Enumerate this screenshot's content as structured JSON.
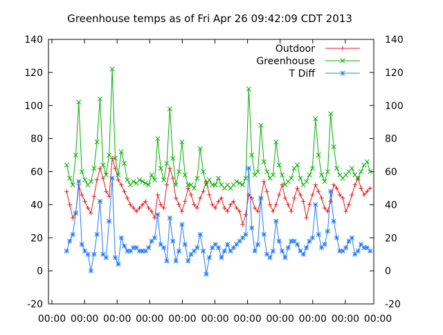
{
  "chart_data": {
    "type": "line",
    "title": "Greenhouse temps as of Fri Apr 26 09:42:09 CDT 2013",
    "xlabel": "",
    "ylabel": "",
    "ylim": [
      -20,
      140
    ],
    "y_ticks": [
      "-20",
      "0",
      "20",
      "40",
      "60",
      "80",
      "100",
      "120",
      "140"
    ],
    "y2_ticks": [
      "-20",
      "0",
      "20",
      "40",
      "60",
      "80",
      "100",
      "120",
      "140"
    ],
    "x_ticks": [
      "00:00",
      "00:00",
      "00:00",
      "00:00",
      "00:00",
      "00:00",
      "00:00",
      "00:00",
      "00:00",
      "00:00",
      "00:00"
    ],
    "grid": false,
    "legend_position": "top-right",
    "x": [
      0,
      0.25,
      0.5,
      0.75,
      1,
      1.25,
      1.5,
      1.75,
      2,
      2.25,
      2.5,
      2.75,
      3,
      3.25,
      3.5,
      3.75,
      4,
      4.25,
      4.5,
      4.75,
      5,
      5.25,
      5.5,
      5.75,
      6,
      6.25,
      6.5,
      6.75,
      7,
      7.25,
      7.5,
      7.75,
      8,
      8.25,
      8.5,
      8.75,
      9,
      9.25,
      9.5,
      9.75,
      10,
      10.25,
      10.5,
      10.75,
      11,
      11.25,
      11.5,
      11.75,
      12,
      12.25,
      12.5,
      12.75,
      13,
      13.25,
      13.5,
      13.75,
      14,
      14.25,
      14.5,
      14.75,
      15,
      15.25,
      15.5,
      15.75,
      16,
      16.25,
      16.5,
      16.75,
      17,
      17.25,
      17.5,
      17.75,
      18,
      18.25,
      18.5,
      18.75,
      19,
      19.25,
      19.5,
      19.75,
      20,
      20.25,
      20.5,
      20.75,
      21,
      21.25,
      21.5,
      21.75,
      22,
      22.25,
      22.5,
      22.75,
      23,
      23.25,
      23.5,
      23.75,
      24,
      24.25,
      24.5,
      24.75,
      25
    ],
    "xlim": [
      -1.5,
      25.3
    ],
    "series": [
      {
        "name": "Outdoor",
        "color": "#e41a1c",
        "marker": "plus",
        "values": [
          48,
          40,
          32,
          35,
          52,
          46,
          42,
          38,
          35,
          45,
          55,
          62,
          56,
          48,
          45,
          68,
          62,
          55,
          52,
          48,
          44,
          40,
          38,
          36,
          38,
          40,
          42,
          38,
          36,
          32,
          46,
          40,
          38,
          52,
          62,
          56,
          44,
          40,
          36,
          42,
          50,
          46,
          40,
          38,
          44,
          48,
          54,
          46,
          40,
          38,
          42,
          44,
          38,
          36,
          40,
          42,
          38,
          36,
          28,
          34,
          46,
          44,
          38,
          36,
          44,
          54,
          48,
          40,
          36,
          40,
          46,
          52,
          44,
          40,
          36,
          44,
          50,
          46,
          42,
          32,
          40,
          46,
          52,
          48,
          44,
          38,
          36,
          42,
          52,
          50,
          46,
          44,
          36,
          40,
          46,
          52,
          56,
          50,
          46,
          48,
          50
        ]
      },
      {
        "name": "Greenhouse",
        "color": "#00b000",
        "marker": "cross",
        "values": [
          64,
          56,
          52,
          70,
          102,
          60,
          55,
          52,
          54,
          62,
          78,
          104,
          64,
          58,
          70,
          122,
          68,
          58,
          72,
          65,
          55,
          52,
          54,
          53,
          55,
          54,
          53,
          52,
          58,
          55,
          80,
          62,
          55,
          65,
          98,
          68,
          52,
          60,
          78,
          58,
          52,
          52,
          50,
          56,
          74,
          60,
          52,
          55,
          52,
          52,
          56,
          52,
          50,
          52,
          50,
          52,
          54,
          53,
          52,
          56,
          110,
          70,
          58,
          60,
          88,
          66,
          60,
          56,
          58,
          78,
          64,
          58,
          52,
          54,
          56,
          62,
          64,
          56,
          52,
          54,
          58,
          62,
          92,
          70,
          58,
          54,
          60,
          95,
          75,
          62,
          58,
          56,
          58,
          60,
          62,
          58,
          56,
          60,
          64,
          66,
          60
        ]
      },
      {
        "name": "T Diff",
        "color": "#1e78ff",
        "marker": "star",
        "values": [
          12,
          18,
          22,
          35,
          54,
          16,
          12,
          10,
          0,
          10,
          22,
          42,
          10,
          8,
          30,
          56,
          8,
          4,
          20,
          15,
          12,
          12,
          14,
          14,
          12,
          12,
          12,
          14,
          18,
          20,
          34,
          16,
          14,
          6,
          32,
          18,
          6,
          12,
          28,
          16,
          6,
          10,
          12,
          14,
          22,
          12,
          -2,
          8,
          14,
          16,
          14,
          8,
          12,
          16,
          12,
          14,
          16,
          18,
          20,
          22,
          62,
          26,
          12,
          16,
          44,
          22,
          10,
          8,
          12,
          30,
          18,
          12,
          8,
          14,
          18,
          18,
          16,
          12,
          10,
          14,
          18,
          20,
          40,
          22,
          14,
          16,
          24,
          48,
          30,
          20,
          12,
          12,
          14,
          18,
          20,
          10,
          12,
          16,
          14,
          14,
          12
        ]
      }
    ]
  }
}
